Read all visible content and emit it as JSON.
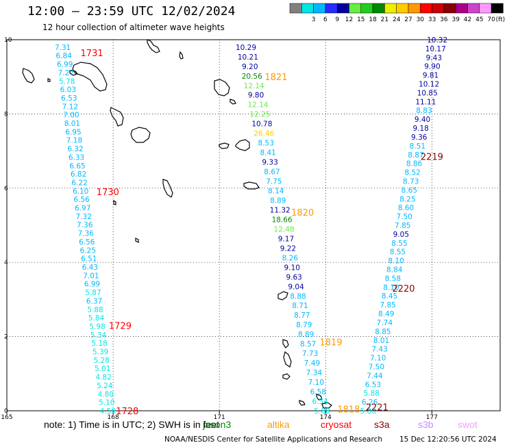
{
  "header": {
    "title": "12:00 – 23:59 UTC 12/02/2024",
    "subtitle": "12 hour collection of altimeter wave heights"
  },
  "legend": {
    "unit": "(ft)",
    "bins": [
      {
        "label": "",
        "color": "#808080"
      },
      {
        "label": "3",
        "color": "#00e5e5"
      },
      {
        "label": "6",
        "color": "#00b8ff"
      },
      {
        "label": "9",
        "color": "#2a2aff"
      },
      {
        "label": "12",
        "color": "#0000a0"
      },
      {
        "label": "15",
        "color": "#66ee44"
      },
      {
        "label": "18",
        "color": "#22cc22"
      },
      {
        "label": "21",
        "color": "#008800"
      },
      {
        "label": "24",
        "color": "#eeee00"
      },
      {
        "label": "27",
        "color": "#ffcc00"
      },
      {
        "label": "30",
        "color": "#ff9900"
      },
      {
        "label": "33",
        "color": "#ff0000"
      },
      {
        "label": "36",
        "color": "#cc0000"
      },
      {
        "label": "39",
        "color": "#880000"
      },
      {
        "label": "42",
        "color": "#aa0088"
      },
      {
        "label": "45",
        "color": "#cc44cc"
      },
      {
        "label": "70",
        "color": "#ff99ff"
      },
      {
        "label": "",
        "color": "#000000"
      }
    ]
  },
  "axes": {
    "x_ticks": [
      "165",
      "168",
      "171",
      "174",
      "177"
    ],
    "y_ticks": [
      "0",
      "2",
      "4",
      "6",
      "8",
      "10"
    ],
    "x_range": [
      165,
      178.5
    ],
    "y_range": [
      0,
      10
    ]
  },
  "tracks": [
    {
      "name": "track-a",
      "x_start": 166.58,
      "x_end": 167.85,
      "y_start": 9.8,
      "y_end": 0.0,
      "values": [
        "7.31",
        "6.84",
        "6.99",
        "7.27",
        "5.78",
        "6.03",
        "6.53",
        "7.12",
        "7.00",
        "8.01",
        "6.95",
        "7.18",
        "6.32",
        "6.33",
        "6.65",
        "6.82",
        "6.22",
        "6.10",
        "6.56",
        "6.97",
        "7.32",
        "7.36",
        "7.36",
        "6.56",
        "6.25",
        "6.51",
        "6.43",
        "7.01",
        "6.99",
        "5.87",
        "6.37",
        "5.88",
        "5.84",
        "5.98",
        "5.34",
        "5.18",
        "5.39",
        "5.28",
        "5.01",
        "4.82",
        "5.24",
        "4.80",
        "5.10",
        "4.59"
      ],
      "colors": [
        "#00b8ff",
        "#00b8ff",
        "#00b8ff",
        "#00b8ff",
        "#00e5e5",
        "#00b8ff",
        "#00b8ff",
        "#00b8ff",
        "#00b8ff",
        "#00b8ff",
        "#00b8ff",
        "#00b8ff",
        "#00b8ff",
        "#00b8ff",
        "#00b8ff",
        "#00b8ff",
        "#00b8ff",
        "#00b8ff",
        "#00b8ff",
        "#00b8ff",
        "#00b8ff",
        "#00b8ff",
        "#00b8ff",
        "#00b8ff",
        "#00b8ff",
        "#00b8ff",
        "#00b8ff",
        "#00b8ff",
        "#00b8ff",
        "#00e5e5",
        "#00b8ff",
        "#00e5e5",
        "#00e5e5",
        "#00e5e5",
        "#00e5e5",
        "#00e5e5",
        "#00e5e5",
        "#00e5e5",
        "#00e5e5",
        "#00e5e5",
        "#00e5e5",
        "#00e5e5",
        "#00e5e5",
        "#00e5e5"
      ]
    },
    {
      "name": "track-b",
      "x_start": 171.75,
      "x_end": 173.9,
      "y_start": 9.8,
      "y_end": 0.0,
      "values": [
        "10.29",
        "10.21",
        "9.20",
        "20.56",
        "12.14",
        "9.80",
        "12.14",
        "12.25",
        "10.78",
        "26.46",
        "8.53",
        "8.41",
        "9.33",
        "8.67",
        "7.75",
        "8.14",
        "8.89",
        "11.32",
        "18.66",
        "12.48",
        "9.17",
        "9.22",
        "8.26",
        "9.10",
        "9.63",
        "9.04",
        "8.88",
        "8.71",
        "8.77",
        "8.79",
        "8.89",
        "8.57",
        "7.73",
        "7.49",
        "7.34",
        "7.10",
        "6.58",
        "6.54",
        "5.88"
      ],
      "colors": [
        "#0000a0",
        "#0000a0",
        "#0000a0",
        "#008800",
        "#66ee44",
        "#0000a0",
        "#66ee44",
        "#66ee44",
        "#0000a0",
        "#ffcc00",
        "#00b8ff",
        "#00b8ff",
        "#0000a0",
        "#00b8ff",
        "#00b8ff",
        "#00b8ff",
        "#00b8ff",
        "#0000a0",
        "#008800",
        "#66ee44",
        "#0000a0",
        "#0000a0",
        "#00b8ff",
        "#0000a0",
        "#0000a0",
        "#0000a0",
        "#00b8ff",
        "#00b8ff",
        "#00b8ff",
        "#00b8ff",
        "#00b8ff",
        "#00b8ff",
        "#00b8ff",
        "#00b8ff",
        "#00b8ff",
        "#00b8ff",
        "#00b8ff",
        "#00e5e5",
        "#00e5e5"
      ]
    },
    {
      "name": "track-c",
      "x_start": 177.15,
      "x_end": 175.2,
      "y_start": 10.0,
      "y_end": 0.0,
      "values": [
        "10.32",
        "10.17",
        "9.43",
        "9.90",
        "9.81",
        "10.12",
        "10.85",
        "11.11",
        "8.83",
        "9.40",
        "9.18",
        "9.36",
        "8.51",
        "8.87",
        "8.86",
        "8.52",
        "8.73",
        "8.65",
        "8.25",
        "8.60",
        "7.50",
        "7.85",
        "9.05",
        "8.55",
        "8.55",
        "8.10",
        "8.84",
        "8.58",
        "8.10",
        "8.45",
        "7.85",
        "8.49",
        "7.74",
        "8.85",
        "8.01",
        "7.43",
        "7.10",
        "7.50",
        "7.44",
        "6.53",
        "5.88",
        "6.26",
        "5.86"
      ],
      "colors": [
        "#0000a0",
        "#0000a0",
        "#0000a0",
        "#0000a0",
        "#0000a0",
        "#0000a0",
        "#0000a0",
        "#0000a0",
        "#00b8ff",
        "#0000a0",
        "#0000a0",
        "#0000a0",
        "#00b8ff",
        "#00b8ff",
        "#00b8ff",
        "#00b8ff",
        "#00b8ff",
        "#00b8ff",
        "#00b8ff",
        "#00b8ff",
        "#00b8ff",
        "#00b8ff",
        "#0000a0",
        "#00b8ff",
        "#00b8ff",
        "#00b8ff",
        "#00b8ff",
        "#00b8ff",
        "#00b8ff",
        "#00b8ff",
        "#00b8ff",
        "#00b8ff",
        "#00b8ff",
        "#00b8ff",
        "#00b8ff",
        "#00b8ff",
        "#00b8ff",
        "#00b8ff",
        "#00b8ff",
        "#00b8ff",
        "#00e5e5",
        "#00b8ff",
        "#00e5e5"
      ]
    }
  ],
  "time_labels": [
    {
      "text": "1731",
      "lon": 167.4,
      "lat": 9.65,
      "color": "#ff0000"
    },
    {
      "text": "1730",
      "lon": 167.85,
      "lat": 5.9,
      "color": "#ff0000"
    },
    {
      "text": "1729",
      "lon": 168.2,
      "lat": 2.3,
      "color": "#ff0000"
    },
    {
      "text": "1728",
      "lon": 168.4,
      "lat": 0.0,
      "color": "#ff0000"
    },
    {
      "text": "1821",
      "lon": 172.6,
      "lat": 9.0,
      "color": "#ff9900"
    },
    {
      "text": "1820",
      "lon": 173.35,
      "lat": 5.35,
      "color": "#ff9900"
    },
    {
      "text": "1819",
      "lon": 174.15,
      "lat": 1.85,
      "color": "#ff9900"
    },
    {
      "text": "1818",
      "lon": 174.65,
      "lat": 0.05,
      "color": "#ff9900"
    },
    {
      "text": "2219",
      "lon": 177.0,
      "lat": 6.85,
      "color": "#880000"
    },
    {
      "text": "2220",
      "lon": 176.2,
      "lat": 3.3,
      "color": "#880000"
    },
    {
      "text": "2221",
      "lon": 175.45,
      "lat": 0.1,
      "color": "#880000"
    }
  ],
  "footer": {
    "note": "note:  1) Time is in UTC; 2) SWH is in feet",
    "satellites": [
      {
        "name": "jason3",
        "color": "#008800"
      },
      {
        "name": "altika",
        "color": "#ff9900"
      },
      {
        "name": "cryosat",
        "color": "#ff0000"
      },
      {
        "name": "s3a",
        "color": "#880000"
      },
      {
        "name": "s3b",
        "color": "#cc88ff"
      },
      {
        "name": "swot",
        "color": "#ff99ff"
      }
    ],
    "credit": "NOAA/NESDIS Center for Satellite Applications and Research",
    "timestamp": "15 Dec 12:20:56 UTC 2024"
  }
}
